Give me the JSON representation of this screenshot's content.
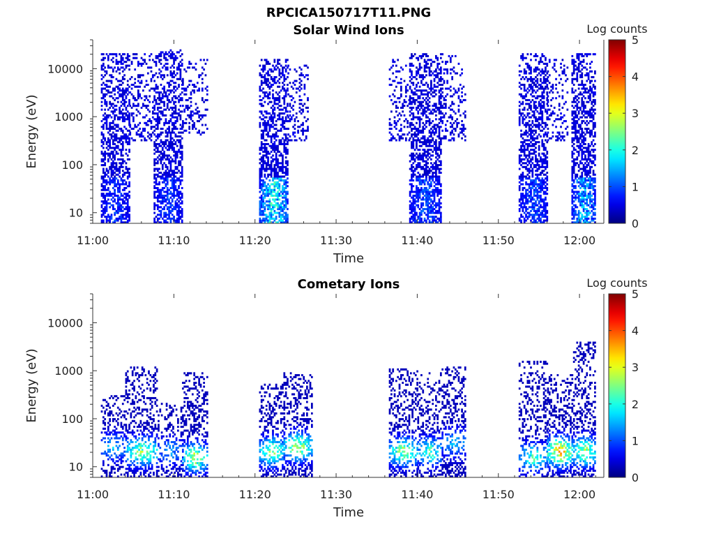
{
  "figure_title": "RPCICA150717T11.PNG",
  "chart_data": [
    {
      "type": "heatmap",
      "title": "Solar Wind Ions",
      "xlabel": "Time",
      "ylabel": "Energy (eV)",
      "yscale": "log",
      "ylim": [
        6,
        40000
      ],
      "xlim_minutes": [
        0,
        63
      ],
      "x_ticks": [
        "11:00",
        "11:10",
        "11:20",
        "11:30",
        "11:40",
        "11:50",
        "12:00"
      ],
      "y_ticks": [
        "10",
        "100",
        "1000",
        "10000"
      ],
      "colorbar": {
        "label": "Log counts",
        "min": 0,
        "max": 5,
        "ticks": [
          "0",
          "1",
          "2",
          "3",
          "4",
          "5"
        ]
      },
      "bursts": [
        {
          "t_start": "11:01",
          "t_end": "11:04.5",
          "e_min": 6,
          "e_max": 20000,
          "density": 0.55,
          "peak_log_counts": 1.0
        },
        {
          "t_start": "11:04.5",
          "t_end": "11:07.5",
          "e_min": 300,
          "e_max": 20000,
          "density": 0.25,
          "peak_log_counts": 0.3
        },
        {
          "t_start": "11:07.5",
          "t_end": "11:11",
          "e_min": 6,
          "e_max": 25000,
          "density": 0.55,
          "peak_log_counts": 1.0
        },
        {
          "t_start": "11:11",
          "t_end": "11:14",
          "e_min": 400,
          "e_max": 15000,
          "density": 0.25,
          "peak_log_counts": 0.3
        },
        {
          "t_start": "11:20.5",
          "t_end": "11:24",
          "e_min": 6,
          "e_max": 15000,
          "density": 0.6,
          "peak_log_counts": 2.6
        },
        {
          "t_start": "11:24",
          "t_end": "11:26.5",
          "e_min": 300,
          "e_max": 12000,
          "density": 0.25,
          "peak_log_counts": 0.3
        },
        {
          "t_start": "11:36.5",
          "t_end": "11:39",
          "e_min": 300,
          "e_max": 15000,
          "density": 0.25,
          "peak_log_counts": 0.3
        },
        {
          "t_start": "11:39",
          "t_end": "11:43",
          "e_min": 6,
          "e_max": 20000,
          "density": 0.6,
          "peak_log_counts": 1.2
        },
        {
          "t_start": "11:43",
          "t_end": "11:46",
          "e_min": 300,
          "e_max": 20000,
          "density": 0.25,
          "peak_log_counts": 0.3
        },
        {
          "t_start": "11:52.5",
          "t_end": "11:56",
          "e_min": 6,
          "e_max": 20000,
          "density": 0.55,
          "peak_log_counts": 1.2
        },
        {
          "t_start": "11:56",
          "t_end": "11:58.5",
          "e_min": 300,
          "e_max": 15000,
          "density": 0.25,
          "peak_log_counts": 0.3
        },
        {
          "t_start": "11:59",
          "t_end": "12:02",
          "e_min": 6,
          "e_max": 20000,
          "density": 0.6,
          "peak_log_counts": 2.0
        }
      ]
    },
    {
      "type": "heatmap",
      "title": "Cometary Ions",
      "xlabel": "Time",
      "ylabel": "Energy (eV)",
      "yscale": "log",
      "ylim": [
        6,
        40000
      ],
      "xlim_minutes": [
        0,
        63
      ],
      "x_ticks": [
        "11:00",
        "11:10",
        "11:20",
        "11:30",
        "11:40",
        "11:50",
        "12:00"
      ],
      "y_ticks": [
        "10",
        "100",
        "1000",
        "10000"
      ],
      "colorbar": {
        "label": "Log counts",
        "min": 0,
        "max": 5,
        "ticks": [
          "0",
          "1",
          "2",
          "3",
          "4",
          "5"
        ]
      },
      "bursts": [
        {
          "t_start": "11:01",
          "t_end": "11:04",
          "e_min": 6,
          "e_max": 300,
          "density": 0.35,
          "peak_log_counts": 1.8,
          "core_energy": 25
        },
        {
          "t_start": "11:04",
          "t_end": "11:08",
          "e_min": 6,
          "e_max": 1200,
          "density": 0.4,
          "peak_log_counts": 3.0,
          "core_energy": 20
        },
        {
          "t_start": "11:08",
          "t_end": "11:11",
          "e_min": 6,
          "e_max": 200,
          "density": 0.35,
          "peak_log_counts": 1.5,
          "core_energy": 20
        },
        {
          "t_start": "11:11",
          "t_end": "11:14",
          "e_min": 6,
          "e_max": 900,
          "density": 0.4,
          "peak_log_counts": 3.2,
          "core_energy": 15
        },
        {
          "t_start": "11:20.5",
          "t_end": "11:23.5",
          "e_min": 6,
          "e_max": 500,
          "density": 0.4,
          "peak_log_counts": 3.0,
          "core_energy": 20
        },
        {
          "t_start": "11:23.5",
          "t_end": "11:27",
          "e_min": 6,
          "e_max": 900,
          "density": 0.4,
          "peak_log_counts": 3.2,
          "core_energy": 25
        },
        {
          "t_start": "11:36.5",
          "t_end": "11:40",
          "e_min": 6,
          "e_max": 1100,
          "density": 0.4,
          "peak_log_counts": 3.0,
          "core_energy": 20
        },
        {
          "t_start": "11:40",
          "t_end": "11:43",
          "e_min": 6,
          "e_max": 900,
          "density": 0.35,
          "peak_log_counts": 2.5,
          "core_energy": 20
        },
        {
          "t_start": "11:43",
          "t_end": "11:46",
          "e_min": 6,
          "e_max": 1200,
          "density": 0.4,
          "peak_log_counts": 1.8,
          "core_energy": 30
        },
        {
          "t_start": "11:52.5",
          "t_end": "11:56",
          "e_min": 6,
          "e_max": 1500,
          "density": 0.35,
          "peak_log_counts": 2.5,
          "core_energy": 15
        },
        {
          "t_start": "11:56",
          "t_end": "11:59",
          "e_min": 6,
          "e_max": 800,
          "density": 0.45,
          "peak_log_counts": 4.2,
          "core_energy": 20
        },
        {
          "t_start": "11:59",
          "t_end": "12:02",
          "e_min": 6,
          "e_max": 4000,
          "density": 0.4,
          "peak_log_counts": 3.2,
          "core_energy": 20
        }
      ]
    }
  ]
}
